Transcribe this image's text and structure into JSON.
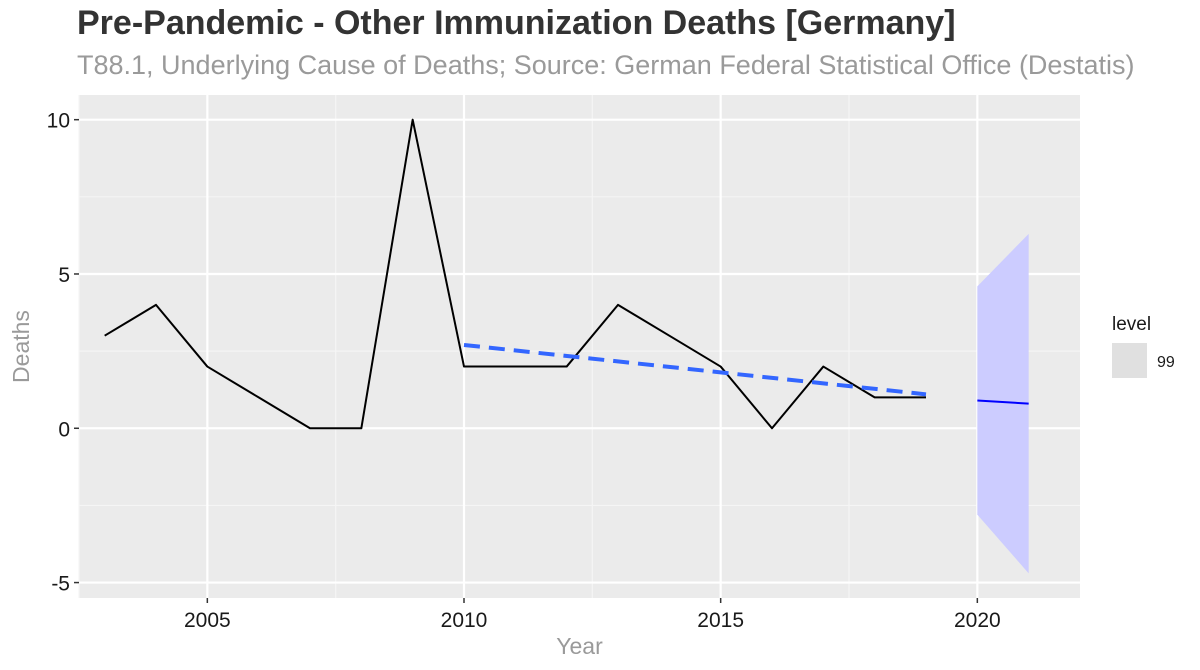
{
  "chart_data": {
    "type": "line",
    "title": "Pre-Pandemic - Other Immunization Deaths [Germany]",
    "subtitle": "T88.1, Underlying Cause of Deaths; Source: German Federal Statistical Office (Destatis)",
    "xlabel": "Year",
    "ylabel": "Deaths",
    "xlim": [
      2002.5,
      2022
    ],
    "ylim": [
      -5.5,
      10.8
    ],
    "x_ticks": [
      2005,
      2010,
      2015,
      2020
    ],
    "x_tick_labels": [
      "2005",
      "2010",
      "2015",
      "2020"
    ],
    "y_ticks": [
      -5,
      0,
      5,
      10
    ],
    "y_tick_labels": [
      "-5",
      "0",
      "5",
      "10"
    ],
    "grid": true,
    "series": [
      {
        "style": "solid",
        "color": "#000000",
        "x": [
          2003,
          2004,
          2005,
          2006,
          2007,
          2008,
          2009,
          2010,
          2011,
          2012,
          2013,
          2014,
          2015,
          2016,
          2017,
          2018,
          2019
        ],
        "y": [
          3,
          4,
          2,
          1,
          0,
          0,
          10,
          2,
          2,
          2,
          4,
          3,
          2,
          0,
          2,
          1,
          1
        ]
      },
      {
        "style": "dashed",
        "color": "#3366ff",
        "x": [
          2010,
          2019
        ],
        "y": [
          2.7,
          1.1
        ]
      },
      {
        "style": "solid",
        "color": "#0000ff",
        "x": [
          2020,
          2021
        ],
        "y": [
          0.9,
          0.8
        ]
      }
    ],
    "forecast_band": {
      "level": "99",
      "color": "#ccccff",
      "x": [
        2020,
        2021
      ],
      "lower": [
        -2.8,
        -4.7
      ],
      "upper": [
        4.6,
        6.3
      ]
    },
    "legend": {
      "title": "level",
      "items": [
        "99"
      ],
      "position": "right"
    }
  },
  "colors": {
    "panel": "#ebebeb",
    "grid_major": "#ffffff",
    "grid_minor": "#f5f5f5",
    "legend_key": "#e0e0e0"
  }
}
